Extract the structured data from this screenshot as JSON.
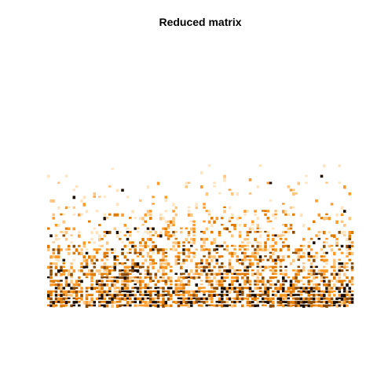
{
  "chart_data": {
    "type": "heatmap",
    "title": "Reduced matrix",
    "xlabel": "",
    "ylabel": "",
    "grid": false,
    "legend": "none",
    "n_columns": 120,
    "n_rows": 70,
    "color_scale": [
      "#ffffff",
      "#ffe4bf",
      "#ffc680",
      "#ff9a26",
      "#e07b00",
      "#8a4a00",
      "#1a0d00"
    ],
    "row_bands": [
      {
        "rows": [
          0,
          28
        ],
        "density": 0.0,
        "mean_intensity": 0.0
      },
      {
        "rows": [
          29,
          33
        ],
        "density": 0.02,
        "mean_intensity": 0.15
      },
      {
        "rows": [
          34,
          41
        ],
        "density": 0.06,
        "mean_intensity": 0.25
      },
      {
        "rows": [
          42,
          46
        ],
        "density": 0.18,
        "mean_intensity": 0.35
      },
      {
        "rows": [
          47,
          51
        ],
        "density": 0.3,
        "mean_intensity": 0.45
      },
      {
        "rows": [
          52,
          57
        ],
        "density": 0.45,
        "mean_intensity": 0.55
      },
      {
        "rows": [
          58,
          63
        ],
        "density": 0.62,
        "mean_intensity": 0.62
      },
      {
        "rows": [
          64,
          69
        ],
        "density": 0.8,
        "mean_intensity": 0.72
      }
    ]
  }
}
